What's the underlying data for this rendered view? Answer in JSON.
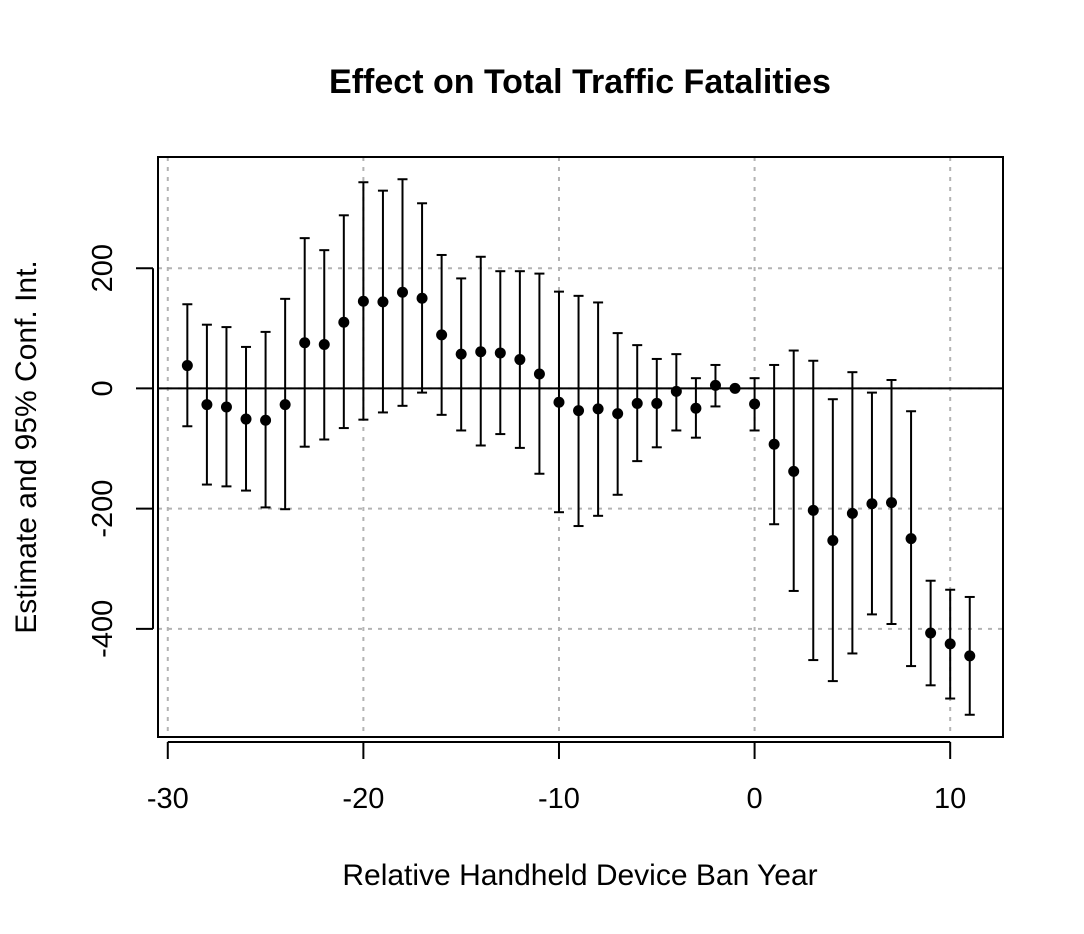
{
  "chart_data": {
    "type": "scatter",
    "title": "Effect on Total Traffic Fatalities",
    "xlabel": "Relative Handheld Device Ban Year",
    "ylabel": "Estimate and 95% Conf. Int.",
    "xlim": [
      -30.5,
      12.7
    ],
    "ylim": [
      -580,
      385
    ],
    "x_ticks": [
      -30,
      -20,
      -10,
      0,
      10
    ],
    "x_tick_labels": [
      "-30",
      "-20",
      "-10",
      "0",
      "10"
    ],
    "y_ticks": [
      -400,
      -200,
      0,
      200
    ],
    "y_tick_labels": [
      "-400",
      "-200",
      "0",
      "200"
    ],
    "grid": true,
    "reference_line_y": 0,
    "series": [
      {
        "x": [
          -29,
          -28,
          -27,
          -26,
          -25,
          -24,
          -23,
          -22,
          -21,
          -20,
          -19,
          -18,
          -17,
          -16,
          -15,
          -14,
          -13,
          -12,
          -11,
          -10,
          -9,
          -8,
          -7,
          -6,
          -5,
          -4,
          -3,
          -2,
          -1,
          0,
          1,
          2,
          3,
          4,
          5,
          6,
          7,
          8,
          9,
          10,
          11
        ],
        "estimate": [
          38,
          -27,
          -31,
          -51,
          -53,
          -27,
          76,
          73,
          110,
          145,
          144,
          160,
          150,
          89,
          57,
          61,
          59,
          48,
          24,
          -23,
          -37,
          -34,
          -42,
          -25,
          -25,
          -5,
          -33,
          5,
          0,
          -26,
          -93,
          -138,
          -203,
          -253,
          -208,
          -192,
          -190,
          -250,
          -407,
          -425,
          -445
        ],
        "lower": [
          -63,
          -160,
          -163,
          -170,
          -198,
          -201,
          -97,
          -85,
          -66,
          -52,
          -40,
          -29,
          -7,
          -44,
          -70,
          -95,
          -76,
          -99,
          -142,
          -206,
          -229,
          -212,
          -177,
          -121,
          -98,
          -70,
          -82,
          -30,
          -2,
          -70,
          -226,
          -337,
          -452,
          -487,
          -441,
          -376,
          -392,
          -462,
          -494,
          -516,
          -543
        ],
        "upper": [
          140,
          106,
          102,
          69,
          94,
          149,
          250,
          230,
          288,
          343,
          329,
          348,
          308,
          222,
          183,
          219,
          195,
          195,
          191,
          161,
          154,
          143,
          92,
          72,
          49,
          57,
          17,
          39,
          3,
          17,
          39,
          63,
          46,
          -18,
          27,
          -7,
          14,
          -38,
          -320,
          -335,
          -347
        ]
      }
    ]
  }
}
